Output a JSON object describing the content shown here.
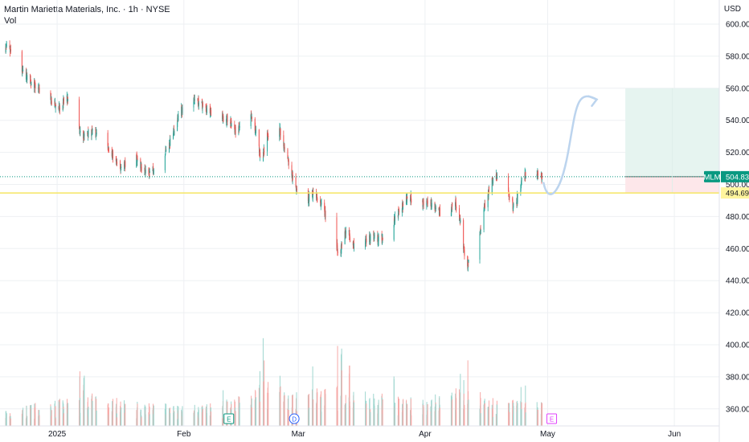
{
  "header": {
    "title": "Martin Marietta Materials, Inc. · 1h · NYSE",
    "volume_label": "Vol",
    "currency": "USD"
  },
  "price_tags": {
    "symbol": "MLM",
    "last_price": "504.83",
    "level_price": "494.69"
  },
  "colors": {
    "up": "#26a69a",
    "down": "#ef5350",
    "grid": "#eef0f3",
    "tag_bg": "#089981",
    "level_line": "#f5e663",
    "level_tag_bg": "#fff59d"
  },
  "event_markers": [
    {
      "label": "E",
      "month": "Feb"
    },
    {
      "label": "D",
      "month": "Mar"
    },
    {
      "label": "E",
      "month": "May"
    }
  ],
  "chart_data": {
    "type": "candlestick",
    "y_axis_ticks": [
      "600.00",
      "580.00",
      "560.00",
      "540.00",
      "520.00",
      "500.00",
      "480.00",
      "460.00",
      "440.00",
      "420.00",
      "400.00",
      "380.00",
      "360.00"
    ],
    "x_axis_ticks": [
      "2025",
      "Feb",
      "Mar",
      "Apr",
      "May",
      "Jun"
    ],
    "ylim": [
      352,
      608
    ],
    "last_price": 504.83,
    "support_level": 494.69,
    "position": {
      "entry": 504.83,
      "target": 560,
      "stop": 494.69
    },
    "price_path": [
      {
        "date": "2024-12-20",
        "price": 585
      },
      {
        "date": "2024-12-23",
        "price": 572
      },
      {
        "date": "2024-12-26",
        "price": 563
      },
      {
        "date": "2024-12-30",
        "price": 553
      },
      {
        "date": "2025-01-02",
        "price": 546
      },
      {
        "date": "2025-01-03",
        "price": 556
      },
      {
        "date": "2025-01-07",
        "price": 530
      },
      {
        "date": "2025-01-10",
        "price": 533
      },
      {
        "date": "2025-01-14",
        "price": 522
      },
      {
        "date": "2025-01-16",
        "price": 510
      },
      {
        "date": "2025-01-20",
        "price": 518
      },
      {
        "date": "2025-01-22",
        "price": 509
      },
      {
        "date": "2025-01-24",
        "price": 507
      },
      {
        "date": "2025-01-27",
        "price": 518
      },
      {
        "date": "2025-01-29",
        "price": 528
      },
      {
        "date": "2025-01-31",
        "price": 545
      },
      {
        "date": "2025-02-03",
        "price": 555
      },
      {
        "date": "2025-02-06",
        "price": 548
      },
      {
        "date": "2025-02-10",
        "price": 542
      },
      {
        "date": "2025-02-12",
        "price": 540
      },
      {
        "date": "2025-02-14",
        "price": 532
      },
      {
        "date": "2025-02-17",
        "price": 545
      },
      {
        "date": "2025-02-19",
        "price": 530
      },
      {
        "date": "2025-02-20",
        "price": 510
      },
      {
        "date": "2025-02-21",
        "price": 530
      },
      {
        "date": "2025-02-24",
        "price": 538
      },
      {
        "date": "2025-02-26",
        "price": 520
      },
      {
        "date": "2025-02-28",
        "price": 500
      },
      {
        "date": "2025-03-03",
        "price": 490
      },
      {
        "date": "2025-03-05",
        "price": 495
      },
      {
        "date": "2025-03-07",
        "price": 485
      },
      {
        "date": "2025-03-10",
        "price": 468
      },
      {
        "date": "2025-03-11",
        "price": 455
      },
      {
        "date": "2025-03-13",
        "price": 475
      },
      {
        "date": "2025-03-14",
        "price": 462
      },
      {
        "date": "2025-03-17",
        "price": 464
      },
      {
        "date": "2025-03-19",
        "price": 468
      },
      {
        "date": "2025-03-21",
        "price": 465
      },
      {
        "date": "2025-03-24",
        "price": 475
      },
      {
        "date": "2025-03-26",
        "price": 485
      },
      {
        "date": "2025-03-28",
        "price": 492
      },
      {
        "date": "2025-03-31",
        "price": 488
      },
      {
        "date": "2025-04-02",
        "price": 490
      },
      {
        "date": "2025-04-04",
        "price": 484
      },
      {
        "date": "2025-04-07",
        "price": 478
      },
      {
        "date": "2025-04-08",
        "price": 492
      },
      {
        "date": "2025-04-09",
        "price": 485
      },
      {
        "date": "2025-04-10",
        "price": 470
      },
      {
        "date": "2025-04-11",
        "price": 448
      },
      {
        "date": "2025-04-14",
        "price": 462
      },
      {
        "date": "2025-04-15",
        "price": 480
      },
      {
        "date": "2025-04-16",
        "price": 490
      },
      {
        "date": "2025-04-17",
        "price": 500
      },
      {
        "date": "2025-04-18",
        "price": 505
      },
      {
        "date": "2025-04-21",
        "price": 498
      },
      {
        "date": "2025-04-22",
        "price": 490
      },
      {
        "date": "2025-04-23",
        "price": 484
      },
      {
        "date": "2025-04-24",
        "price": 496
      },
      {
        "date": "2025-04-25",
        "price": 505
      },
      {
        "date": "2025-04-28",
        "price": 508
      },
      {
        "date": "2025-04-29",
        "price": 505
      }
    ],
    "volume_profile": [
      {
        "date": "2024-12-20",
        "level": 0.12
      },
      {
        "date": "2025-01-10",
        "level": 0.22
      },
      {
        "date": "2025-01-20",
        "level": 0.16
      },
      {
        "date": "2025-02-06",
        "level": 0.14
      },
      {
        "date": "2025-02-12",
        "level": 0.18
      },
      {
        "date": "2025-02-21",
        "level": 0.3
      },
      {
        "date": "2025-03-01",
        "level": 0.22
      },
      {
        "date": "2025-03-10",
        "level": 0.28
      },
      {
        "date": "2025-03-20",
        "level": 0.22
      },
      {
        "date": "2025-03-31",
        "level": 0.18
      },
      {
        "date": "2025-04-10",
        "level": 0.26
      },
      {
        "date": "2025-04-20",
        "level": 0.18
      },
      {
        "date": "2025-04-29",
        "level": 0.16
      }
    ],
    "volume_spikes": [
      {
        "date": "2025-01-07",
        "level": 0.52
      },
      {
        "date": "2025-02-10",
        "level": 0.38
      },
      {
        "date": "2025-02-20",
        "level": 0.82
      },
      {
        "date": "2025-02-24",
        "level": 0.6
      },
      {
        "date": "2025-03-04",
        "level": 0.72
      },
      {
        "date": "2025-03-11",
        "level": 0.78
      },
      {
        "date": "2025-03-13",
        "level": 0.66
      },
      {
        "date": "2025-03-24",
        "level": 0.54
      },
      {
        "date": "2025-04-09",
        "level": 0.62
      },
      {
        "date": "2025-04-11",
        "level": 0.64
      },
      {
        "date": "2025-04-25",
        "level": 0.55
      }
    ]
  }
}
